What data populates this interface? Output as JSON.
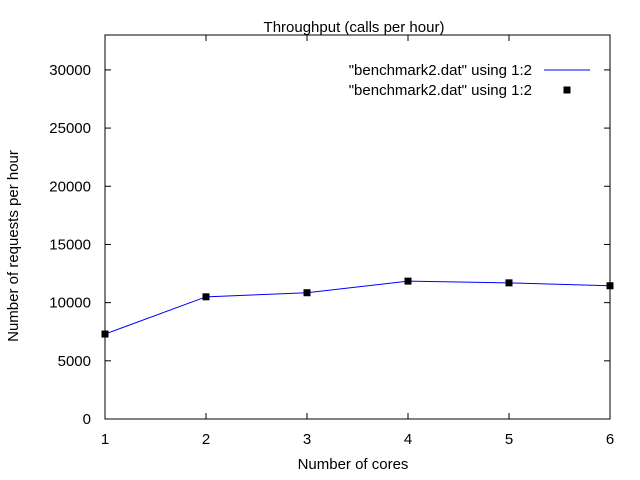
{
  "chart_data": {
    "type": "line",
    "title": "Throughput (calls per hour)",
    "xlabel": "Number of cores",
    "ylabel": "Number of requests per hour",
    "xlim": [
      1,
      6
    ],
    "ylim": [
      0,
      33000
    ],
    "xticks": [
      1,
      2,
      3,
      4,
      5,
      6
    ],
    "yticks": [
      0,
      5000,
      10000,
      15000,
      20000,
      25000,
      30000
    ],
    "grid": false,
    "legend_position": "top-right",
    "series": [
      {
        "name": "\"benchmark2.dat\" using 1:2",
        "style": "lines",
        "color": "#0000ff",
        "x": [
          1,
          2,
          3,
          4,
          5,
          6
        ],
        "y": [
          7300,
          10500,
          10850,
          11850,
          11700,
          11450
        ]
      },
      {
        "name": "\"benchmark2.dat\" using 1:2",
        "style": "points",
        "marker": "square",
        "color": "#000000",
        "x": [
          1,
          2,
          3,
          4,
          5,
          6
        ],
        "y": [
          7300,
          10500,
          10850,
          11850,
          11700,
          11450
        ]
      }
    ]
  }
}
